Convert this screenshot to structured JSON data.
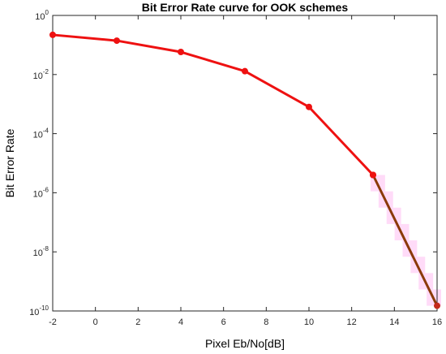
{
  "chart_data": {
    "type": "line",
    "title": "Bit Error Rate curve for OOK schemes",
    "xlabel": "Pixel Eb/No[dB]",
    "ylabel": "Bit Error Rate",
    "xlim": [
      -2,
      16
    ],
    "ylim": [
      1e-10,
      1
    ],
    "yscale": "log",
    "grid": false,
    "x_ticks": [
      "-2",
      "0",
      "2",
      "4",
      "6",
      "8",
      "10",
      "12",
      "14",
      "16"
    ],
    "y_ticks": [
      {
        "base": "10",
        "exp": "0"
      },
      {
        "base": "10",
        "exp": "-2"
      },
      {
        "base": "10",
        "exp": "-4"
      },
      {
        "base": "10",
        "exp": "-6"
      },
      {
        "base": "10",
        "exp": "-8"
      },
      {
        "base": "10",
        "exp": "-10"
      }
    ],
    "series": [
      {
        "color": "#ee1111",
        "x": [
          -2,
          1,
          4,
          7,
          10,
          13
        ],
        "y": [
          0.22,
          0.14,
          0.058,
          0.013,
          0.0008,
          4e-06
        ],
        "markers": true
      },
      {
        "color": "#8b3a0a",
        "x": [
          13,
          16
        ],
        "y": [
          4e-06,
          1.5e-10
        ],
        "markers": true
      }
    ],
    "band_color": "#ffccf5"
  }
}
